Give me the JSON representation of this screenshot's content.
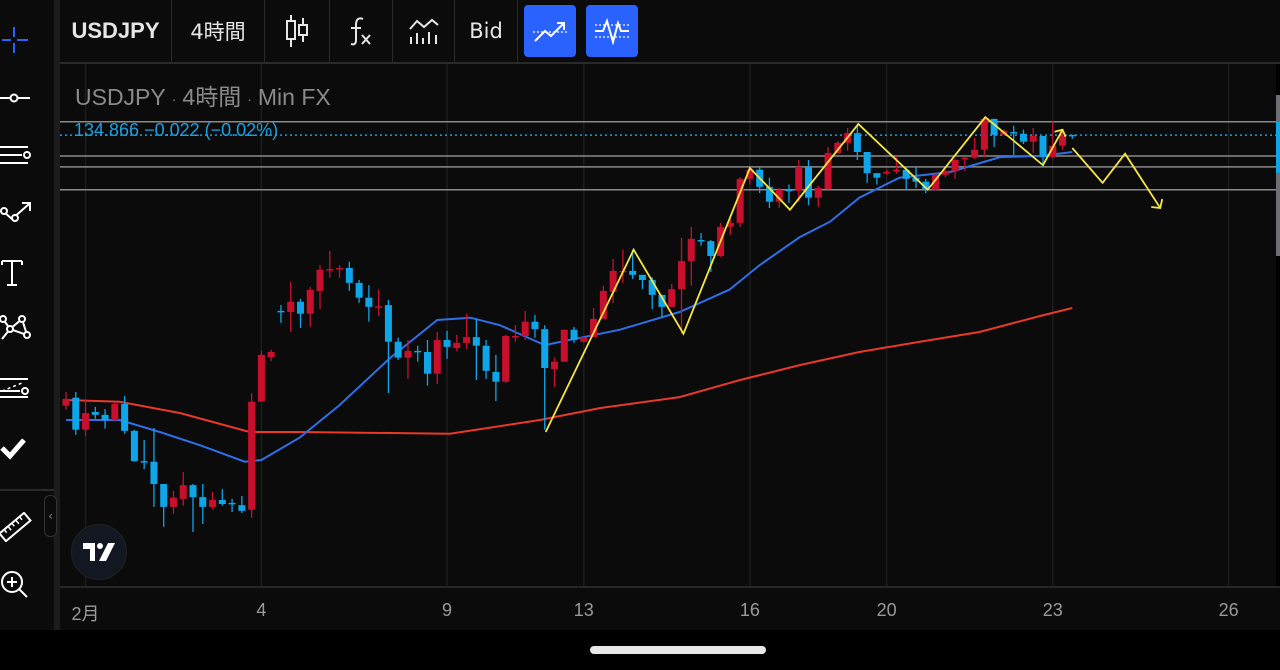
{
  "toolbar": {
    "symbol": "USDJPY",
    "interval": "4時間",
    "chart_type_icon": "candlestick-icon",
    "indicators_icon": "fx-icon",
    "compare_icon": "line-volume-icon",
    "price_source": "Bid",
    "active_button_1_icon": "trend-arrow-icon",
    "active_button_2_icon": "oscillator-icon",
    "active_color": "#2962ff"
  },
  "left_tools": [
    {
      "name": "crosshair-icon"
    },
    {
      "name": "horizontal-line-icon"
    },
    {
      "name": "parallel-lines-icon"
    },
    {
      "name": "path-arrow-icon"
    },
    {
      "name": "text-icon"
    },
    {
      "name": "pattern-icon"
    },
    {
      "name": "fib-levels-icon"
    },
    {
      "name": "checkmark-icon"
    },
    {
      "name": "ruler-icon"
    },
    {
      "name": "zoom-in-icon"
    }
  ],
  "legend": {
    "symbol": "USDJPY",
    "interval": "4時間",
    "source": "Min FX",
    "separator": "·"
  },
  "last_price": {
    "text": "134.866 −0.022 (−0.02%)",
    "value": 134.866,
    "color": "#1e9fe0"
  },
  "logo": "TV",
  "chart_data": {
    "type": "candlestick",
    "colors": {
      "up": "#c8102e",
      "down": "#0ea5e9",
      "ma_fast": "#2f6fe8",
      "ma_slow": "#e8392a",
      "zigzag": "#f5e642",
      "hline": "#8a8a8a"
    },
    "x_ticks": [
      {
        "label": "2月",
        "index": 2
      },
      {
        "label": "4",
        "index": 20
      },
      {
        "label": "9",
        "index": 39
      },
      {
        "label": "13",
        "index": 53
      },
      {
        "label": "16",
        "index": 70
      },
      {
        "label": "20",
        "index": 84
      },
      {
        "label": "23",
        "index": 101
      },
      {
        "label": "26",
        "index": 119
      }
    ],
    "ohlc": [
      [
        130.13,
        130.37,
        130.06,
        130.25
      ],
      [
        130.27,
        130.37,
        129.62,
        129.71
      ],
      [
        129.71,
        130.23,
        129.6,
        130.0
      ],
      [
        130.02,
        130.11,
        129.9,
        129.97
      ],
      [
        129.97,
        130.07,
        129.73,
        129.88
      ],
      [
        129.88,
        130.18,
        129.85,
        130.16
      ],
      [
        130.16,
        130.3,
        129.64,
        129.69
      ],
      [
        129.69,
        129.71,
        129.15,
        129.16
      ],
      [
        129.16,
        129.53,
        129.02,
        129.15
      ],
      [
        129.15,
        129.74,
        128.36,
        128.76
      ],
      [
        128.76,
        128.76,
        128.01,
        128.36
      ],
      [
        128.36,
        128.64,
        128.24,
        128.52
      ],
      [
        128.5,
        128.97,
        128.38,
        128.74
      ],
      [
        128.74,
        128.76,
        127.92,
        128.53
      ],
      [
        128.53,
        128.76,
        128.06,
        128.36
      ],
      [
        128.36,
        128.62,
        128.31,
        128.48
      ],
      [
        128.48,
        128.67,
        128.38,
        128.41
      ],
      [
        128.43,
        128.5,
        128.27,
        128.41
      ],
      [
        128.39,
        128.55,
        128.25,
        128.29
      ],
      [
        128.31,
        130.35,
        128.17,
        130.2
      ],
      [
        130.2,
        131.09,
        130.2,
        131.02
      ],
      [
        130.98,
        131.11,
        130.91,
        131.07
      ],
      [
        131.79,
        131.89,
        131.58,
        131.77
      ],
      [
        131.77,
        132.3,
        131.42,
        131.95
      ],
      [
        131.95,
        132.0,
        131.49,
        131.74
      ],
      [
        131.74,
        132.21,
        131.51,
        132.16
      ],
      [
        132.14,
        132.59,
        131.82,
        132.51
      ],
      [
        132.51,
        132.84,
        132.37,
        132.52
      ],
      [
        132.52,
        132.59,
        132.37,
        132.54
      ],
      [
        132.54,
        132.65,
        132.14,
        132.28
      ],
      [
        132.28,
        132.33,
        131.93,
        132.02
      ],
      [
        132.02,
        132.24,
        131.6,
        131.86
      ],
      [
        131.86,
        132.16,
        131.7,
        131.87
      ],
      [
        131.89,
        131.98,
        130.35,
        131.25
      ],
      [
        131.25,
        131.32,
        130.93,
        130.97
      ],
      [
        130.97,
        131.28,
        130.6,
        131.09
      ],
      [
        131.09,
        131.18,
        130.9,
        131.07
      ],
      [
        131.07,
        131.28,
        130.48,
        130.69
      ],
      [
        130.69,
        131.42,
        130.51,
        131.28
      ],
      [
        131.28,
        131.44,
        130.95,
        131.16
      ],
      [
        131.14,
        131.37,
        131.09,
        131.23
      ],
      [
        131.23,
        131.74,
        131.12,
        131.33
      ],
      [
        131.33,
        131.65,
        130.58,
        131.18
      ],
      [
        131.18,
        131.28,
        130.6,
        130.74
      ],
      [
        130.72,
        131.02,
        130.21,
        130.55
      ],
      [
        130.55,
        131.37,
        130.53,
        131.35
      ],
      [
        131.34,
        131.54,
        131.25,
        131.35
      ],
      [
        131.35,
        131.79,
        131.28,
        131.6
      ],
      [
        131.6,
        131.72,
        131.32,
        131.47
      ],
      [
        131.47,
        131.54,
        129.71,
        130.79
      ],
      [
        130.77,
        130.98,
        130.46,
        130.9
      ],
      [
        130.9,
        131.46,
        130.9,
        131.46
      ],
      [
        131.46,
        131.51,
        131.23,
        131.28
      ],
      [
        131.25,
        131.33,
        131.23,
        131.33
      ],
      [
        131.33,
        131.84,
        131.33,
        131.65
      ],
      [
        131.65,
        132.23,
        131.65,
        132.14
      ],
      [
        132.12,
        132.7,
        131.93,
        132.49
      ],
      [
        132.48,
        132.86,
        132.28,
        132.49
      ],
      [
        132.49,
        132.86,
        132.35,
        132.42
      ],
      [
        132.42,
        132.42,
        132.17,
        132.33
      ],
      [
        132.33,
        132.38,
        131.82,
        132.07
      ],
      [
        132.07,
        132.07,
        131.68,
        131.86
      ],
      [
        131.86,
        132.26,
        131.86,
        132.17
      ],
      [
        132.17,
        133.07,
        131.39,
        132.66
      ],
      [
        132.66,
        133.26,
        132.23,
        133.05
      ],
      [
        133.03,
        133.15,
        132.93,
        133.03
      ],
      [
        133.01,
        133.03,
        132.47,
        132.75
      ],
      [
        132.75,
        133.33,
        132.73,
        133.26
      ],
      [
        133.26,
        133.4,
        133.12,
        133.33
      ],
      [
        133.33,
        134.13,
        133.26,
        134.1
      ],
      [
        134.1,
        134.31,
        134.0,
        134.26
      ],
      [
        134.26,
        134.31,
        133.85,
        133.96
      ],
      [
        133.96,
        134.12,
        133.59,
        133.7
      ],
      [
        133.7,
        133.94,
        133.59,
        133.91
      ],
      [
        133.91,
        134.0,
        133.68,
        133.89
      ],
      [
        133.89,
        134.43,
        133.7,
        134.31
      ],
      [
        134.31,
        134.43,
        133.64,
        133.77
      ],
      [
        133.77,
        133.98,
        133.61,
        133.94
      ],
      [
        133.92,
        134.66,
        133.91,
        134.55
      ],
      [
        134.55,
        134.76,
        134.54,
        134.73
      ],
      [
        134.73,
        134.99,
        134.59,
        134.9
      ],
      [
        134.9,
        135.04,
        134.43,
        134.57
      ],
      [
        134.57,
        134.57,
        134.03,
        134.2
      ],
      [
        134.2,
        134.2,
        134.0,
        134.12
      ],
      [
        134.21,
        134.26,
        134.17,
        134.22
      ],
      [
        134.24,
        134.5,
        134.19,
        134.26
      ],
      [
        134.26,
        134.31,
        133.91,
        134.1
      ],
      [
        134.12,
        134.31,
        133.94,
        134.05
      ],
      [
        134.05,
        134.1,
        133.85,
        133.91
      ],
      [
        133.91,
        134.19,
        133.89,
        134.17
      ],
      [
        134.17,
        134.26,
        134.13,
        134.24
      ],
      [
        134.24,
        134.45,
        134.1,
        134.43
      ],
      [
        134.45,
        134.48,
        134.24,
        134.47
      ],
      [
        134.47,
        134.82,
        134.45,
        134.61
      ],
      [
        134.61,
        135.18,
        134.48,
        135.15
      ],
      [
        135.15,
        135.15,
        134.66,
        134.87
      ],
      [
        134.87,
        134.97,
        134.87,
        134.94
      ],
      [
        134.92,
        135.03,
        134.52,
        134.92
      ],
      [
        134.89,
        134.96,
        134.71,
        134.75
      ],
      [
        134.75,
        134.99,
        134.55,
        134.85
      ],
      [
        134.85,
        134.85,
        134.31,
        134.48
      ],
      [
        134.48,
        135.11,
        134.47,
        134.68
      ],
      [
        134.68,
        134.96,
        134.61,
        134.85
      ],
      [
        134.87,
        134.87,
        134.8,
        134.866
      ]
    ],
    "ma_fast": [
      [
        0,
        129.88
      ],
      [
        5.5,
        129.88
      ],
      [
        9.6,
        129.67
      ],
      [
        13.7,
        129.44
      ],
      [
        18.3,
        129.15
      ],
      [
        20,
        129.18
      ],
      [
        23.9,
        129.57
      ],
      [
        28,
        130.14
      ],
      [
        33.2,
        130.97
      ],
      [
        38,
        131.63
      ],
      [
        41.4,
        131.67
      ],
      [
        44.4,
        131.54
      ],
      [
        49,
        131.19
      ],
      [
        56.7,
        131.46
      ],
      [
        62.8,
        131.77
      ],
      [
        64.9,
        131.93
      ],
      [
        67.9,
        132.16
      ],
      [
        71,
        132.59
      ],
      [
        75.1,
        133.08
      ],
      [
        78.2,
        133.35
      ],
      [
        81.2,
        133.77
      ],
      [
        85.3,
        134.12
      ],
      [
        90.5,
        134.22
      ],
      [
        95.6,
        134.48
      ],
      [
        99.7,
        134.5
      ],
      [
        103,
        134.57
      ]
    ],
    "ma_slow": [
      [
        0,
        130.23
      ],
      [
        5.5,
        130.2
      ],
      [
        11.7,
        130.0
      ],
      [
        18.8,
        129.67
      ],
      [
        23.9,
        129.67
      ],
      [
        39.3,
        129.64
      ],
      [
        48.5,
        129.88
      ],
      [
        54.7,
        130.09
      ],
      [
        62.8,
        130.28
      ],
      [
        69,
        130.58
      ],
      [
        75.1,
        130.84
      ],
      [
        81.2,
        131.07
      ],
      [
        87.4,
        131.25
      ],
      [
        93.5,
        131.42
      ],
      [
        99.7,
        131.7
      ],
      [
        103,
        131.84
      ]
    ],
    "zigzag": [
      [
        49.1,
        129.67
      ],
      [
        58.1,
        132.86
      ],
      [
        63.2,
        131.39
      ],
      [
        70,
        134.29
      ],
      [
        74.1,
        133.56
      ],
      [
        81.1,
        135.06
      ],
      [
        88.2,
        133.91
      ],
      [
        94.1,
        135.18
      ],
      [
        100,
        134.34
      ],
      [
        102,
        134.96
      ]
    ],
    "projection": [
      [
        103,
        134.64
      ],
      [
        106.1,
        134.03
      ],
      [
        108.4,
        134.54
      ],
      [
        112,
        133.59
      ]
    ],
    "horizontal_levels": [
      135.1,
      134.5,
      134.31,
      133.91
    ]
  }
}
